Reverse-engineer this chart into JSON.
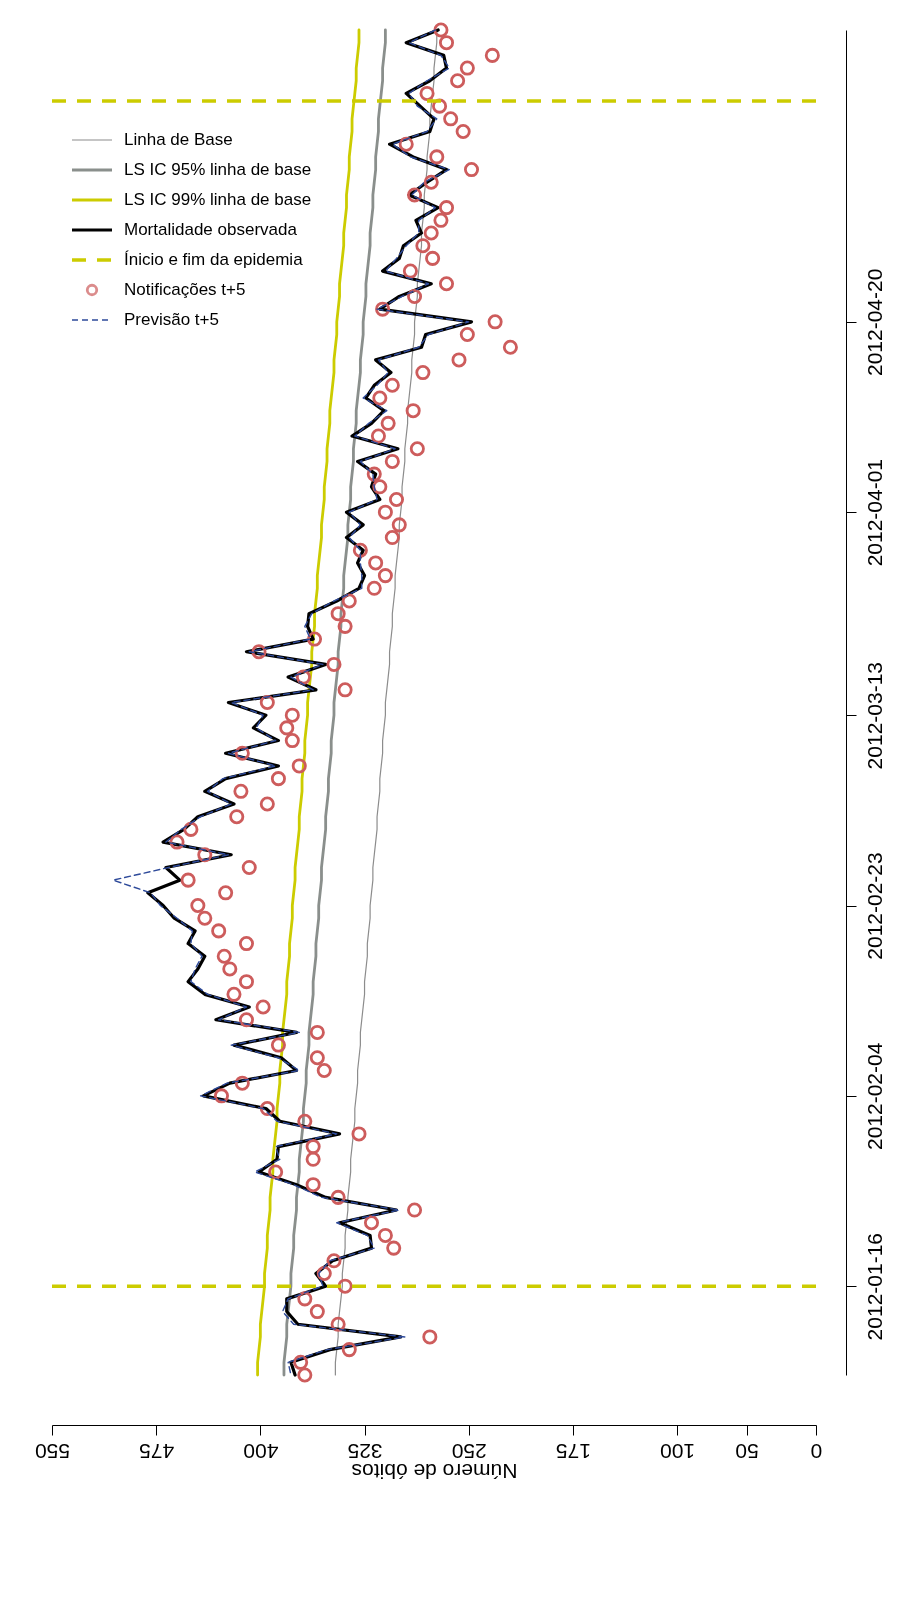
{
  "chart_data": {
    "type": "line",
    "orientation": "horizontal",
    "xlabel": "Número de óbitos",
    "xlim": [
      550,
      0
    ],
    "xticks": [
      550,
      475,
      400,
      325,
      250,
      175,
      100,
      50,
      0
    ],
    "categories": [
      null,
      null,
      null,
      null,
      null,
      null,
      null,
      null,
      null,
      null,
      null,
      null,
      null,
      null,
      null,
      null,
      null,
      null,
      null,
      null,
      null,
      null,
      null,
      "2012-04-20",
      null,
      null,
      null,
      null,
      null,
      null,
      null,
      null,
      null,
      null,
      null,
      null,
      null,
      null,
      "2012-04-01",
      null,
      null,
      null,
      null,
      null,
      null,
      null,
      null,
      null,
      null,
      null,
      null,
      null,
      null,
      null,
      "2012-03-13",
      null,
      null,
      null,
      null,
      null,
      null,
      null,
      null,
      null,
      null,
      null,
      null,
      null,
      null,
      "2012-02-23",
      null,
      null,
      null,
      null,
      null,
      null,
      null,
      null,
      null,
      null,
      null,
      null,
      null,
      null,
      "2012-02-04",
      null,
      null,
      null,
      null,
      null,
      null,
      null,
      null,
      null,
      null,
      null,
      null,
      null,
      null,
      "2012-01-16",
      null,
      null,
      null,
      null,
      null,
      null,
      null
    ],
    "grid": false,
    "legend": "top left",
    "series": [
      {
        "name": "Linha de Base",
        "color": "#8c8c8c",
        "values": [
          273,
          273,
          274,
          275,
          275,
          276,
          277,
          278,
          278,
          279,
          280,
          280,
          281,
          282,
          282,
          283,
          284,
          284,
          285,
          286,
          287,
          287,
          288,
          289,
          289,
          290,
          291,
          291,
          292,
          293,
          294,
          294,
          295,
          296,
          296,
          297,
          298,
          298,
          299,
          300,
          300,
          301,
          302,
          303,
          303,
          304,
          305,
          305,
          306,
          307,
          307,
          308,
          309,
          310,
          310,
          311,
          312,
          312,
          313,
          314,
          314,
          315,
          316,
          316,
          317,
          318,
          319,
          319,
          320,
          321,
          321,
          322,
          323,
          323,
          324,
          325,
          325,
          326,
          327,
          328,
          328,
          329,
          330,
          330,
          331,
          332,
          332,
          333,
          334,
          335,
          335,
          336,
          337,
          337,
          338,
          339,
          339,
          340,
          341,
          341,
          342,
          343,
          344,
          344,
          345,
          346,
          346
        ]
      },
      {
        "name": "LS IC 95% linha de base",
        "color": "#8a8f8c",
        "values": [
          310,
          310,
          311,
          312,
          312,
          313,
          314,
          315,
          315,
          316,
          317,
          317,
          318,
          319,
          319,
          320,
          321,
          321,
          322,
          323,
          324,
          324,
          325,
          326,
          326,
          327,
          328,
          328,
          329,
          330,
          331,
          331,
          332,
          333,
          333,
          334,
          335,
          335,
          336,
          337,
          337,
          338,
          339,
          340,
          340,
          341,
          342,
          342,
          343,
          344,
          344,
          345,
          346,
          347,
          347,
          348,
          349,
          349,
          350,
          351,
          351,
          352,
          353,
          353,
          354,
          355,
          356,
          356,
          357,
          358,
          358,
          359,
          360,
          360,
          361,
          362,
          362,
          363,
          364,
          365,
          365,
          366,
          367,
          367,
          368,
          369,
          369,
          370,
          371,
          372,
          372,
          373,
          374,
          374,
          375,
          376,
          376,
          377,
          378,
          378,
          379,
          380,
          381,
          381,
          382,
          383,
          383
        ]
      },
      {
        "name": "LS IC 99% linha de base",
        "color": "#cccc00",
        "values": [
          329,
          329,
          330,
          331,
          331,
          332,
          333,
          334,
          334,
          335,
          336,
          336,
          337,
          338,
          338,
          339,
          340,
          340,
          341,
          342,
          343,
          343,
          344,
          345,
          345,
          346,
          347,
          347,
          348,
          349,
          350,
          350,
          351,
          352,
          352,
          353,
          354,
          354,
          355,
          356,
          356,
          357,
          358,
          359,
          359,
          360,
          361,
          361,
          362,
          363,
          363,
          364,
          365,
          366,
          366,
          367,
          368,
          368,
          369,
          370,
          370,
          371,
          372,
          372,
          373,
          374,
          375,
          375,
          376,
          377,
          377,
          378,
          379,
          379,
          380,
          381,
          381,
          382,
          383,
          384,
          384,
          385,
          386,
          386,
          387,
          388,
          388,
          389,
          390,
          391,
          391,
          392,
          393,
          393,
          394,
          395,
          395,
          396,
          397,
          397,
          398,
          399,
          400,
          400,
          401,
          402,
          402
        ]
      },
      {
        "name": "Mortalidade observada",
        "color": "#000000",
        "values": [
          272,
          295,
          268,
          266,
          278,
          295,
          285,
          275,
          278,
          307,
          290,
          266,
          280,
          293,
          272,
          288,
          284,
          297,
          300,
          312,
          277,
          300,
          314,
          248,
          281,
          284,
          317,
          306,
          318,
          324,
          311,
          320,
          334,
          301,
          330,
          317,
          320,
          314,
          338,
          326,
          338,
          326,
          330,
          325,
          329,
          345,
          365,
          366,
          362,
          410,
          353,
          380,
          360,
          423,
          396,
          405,
          387,
          425,
          387,
          425,
          440,
          419,
          445,
          455,
          470,
          421,
          468,
          458,
          481,
          470,
          462,
          447,
          452,
          440,
          445,
          452,
          440,
          408,
          432,
          374,
          419,
          385,
          374,
          422,
          441,
          396,
          386,
          343,
          387,
          388,
          401,
          374,
          353,
          302,
          343,
          321,
          320,
          348,
          360,
          353,
          381,
          381,
          373,
          299,
          350,
          378,
          375
        ]
      },
      {
        "name": "Notificações t+5",
        "type": "scatter",
        "marker": "circle",
        "color": "#cd5c5c",
        "values": [
          270,
          266,
          233,
          251,
          258,
          280,
          271,
          263,
          254,
          295,
          273,
          248,
          277,
          289,
          266,
          270,
          277,
          283,
          276,
          292,
          266,
          289,
          312,
          231,
          251,
          220,
          257,
          283,
          305,
          314,
          290,
          308,
          315,
          287,
          305,
          318,
          314,
          302,
          310,
          300,
          305,
          328,
          317,
          310,
          318,
          336,
          344,
          339,
          361,
          401,
          347,
          369,
          339,
          395,
          377,
          381,
          377,
          413,
          372,
          387,
          414,
          395,
          417,
          450,
          460,
          440,
          408,
          452,
          425,
          445,
          440,
          430,
          410,
          426,
          422,
          410,
          419,
          398,
          410,
          359,
          387,
          359,
          354,
          413,
          428,
          395,
          368,
          329,
          362,
          362,
          389,
          362,
          344,
          289,
          320,
          310,
          304,
          347,
          354,
          339,
          368,
          359,
          344,
          278,
          336,
          371,
          368
        ]
      },
      {
        "name": "Previsão t+5",
        "line_style": "dashed",
        "color": "#2e4a9a",
        "values": [
          274,
          293,
          270,
          264,
          280,
          293,
          287,
          273,
          280,
          305,
          292,
          264,
          282,
          291,
          274,
          286,
          286,
          295,
          302,
          310,
          279,
          298,
          316,
          250,
          279,
          286,
          315,
          308,
          316,
          326,
          309,
          322,
          332,
          303,
          328,
          319,
          318,
          316,
          336,
          328,
          336,
          328,
          328,
          327,
          327,
          347,
          363,
          368,
          364,
          408,
          355,
          378,
          362,
          421,
          398,
          403,
          389,
          423,
          389,
          427,
          438,
          421,
          443,
          457,
          468,
          423,
          466,
          506,
          479,
          472,
          460,
          449,
          450,
          442,
          447,
          450,
          438,
          410,
          430,
          372,
          421,
          387,
          372,
          424,
          443,
          398,
          388,
          345,
          389,
          386,
          404,
          376,
          356,
          300,
          345,
          323,
          318,
          350,
          358,
          355,
          380,
          384,
          376,
          296,
          352,
          380,
          378
        ]
      }
    ],
    "ref_lines": [
      {
        "axis": "y",
        "value": "2012-01-16",
        "label": "Ínicio e fim da epidemia",
        "color": "#cccc00",
        "line_style": "dashed"
      }
    ]
  }
}
